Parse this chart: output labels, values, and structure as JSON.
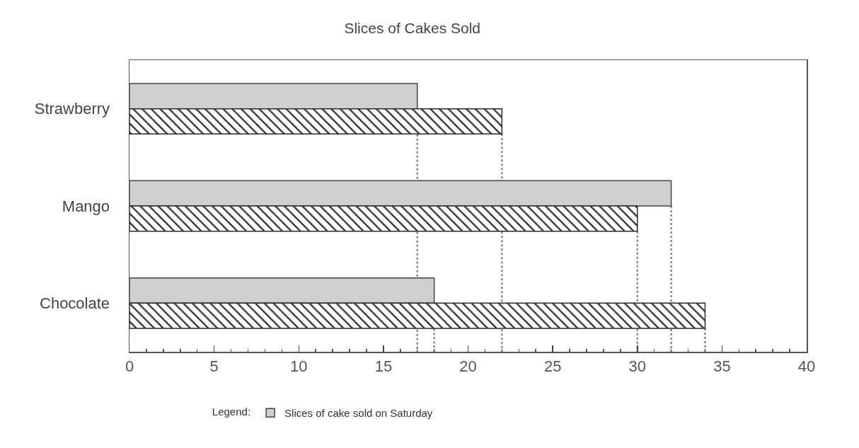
{
  "chart_data": {
    "type": "bar",
    "title": "Slices of Cakes Sold",
    "orientation": "horizontal",
    "categories": [
      "Strawberry",
      "Mango",
      "Chocolate"
    ],
    "series": [
      {
        "name": "Slices of cake sold on Saturday",
        "color": "#cfcfcf",
        "values": [
          17,
          32,
          18
        ]
      },
      {
        "color": "#2b2b2b",
        "values": [
          22,
          30,
          34
        ]
      }
    ],
    "xlim": [
      0,
      40
    ],
    "xticks": [
      0,
      {
        "value": 1,
        "label": null
      },
      {
        "value": 2,
        "label": null
      },
      {
        "value": 3,
        "label": null
      },
      {
        "value": 4,
        "label": null
      },
      5,
      {
        "value": 6,
        "label": null
      },
      {
        "value": 7,
        "label": null
      },
      {
        "value": 8,
        "label": null
      },
      {
        "value": 9,
        "label": null
      },
      10,
      {
        "value": 11,
        "label": null
      },
      {
        "value": 12,
        "label": null
      },
      {
        "value": 13,
        "label": null
      },
      {
        "value": 14,
        "label": null
      },
      15,
      {
        "value": 16,
        "label": null
      },
      {
        "value": 17,
        "label": null
      },
      {
        "value": 18,
        "label": null
      },
      {
        "value": 19,
        "label": null
      },
      20,
      {
        "value": 21,
        "label": null
      },
      {
        "value": 22,
        "label": null
      },
      {
        "value": 23,
        "label": null
      },
      {
        "value": 24,
        "label": null
      },
      25,
      {
        "value": 26,
        "label": null
      },
      {
        "value": 27,
        "label": null
      },
      {
        "value": 28,
        "label": null
      },
      {
        "value": 29,
        "label": null
      },
      30,
      {
        "value": 31,
        "label": null
      },
      {
        "value": 32,
        "label": null
      },
      {
        "value": 33,
        "label": null
      },
      {
        "value": 34,
        "label": null
      },
      35,
      {
        "value": 36,
        "label": null
      },
      {
        "value": 37,
        "label": null
      },
      {
        "value": 38,
        "label": null
      },
      {
        "value": 39,
        "label": null
      },
      40
    ],
    "ref_lines": [
      {
        "axis": "x",
        "value": 17,
        "line_style": "dotted",
        "color": "#7a7a7a"
      },
      {
        "axis": "x",
        "value": 22,
        "line_style": "dotted",
        "color": "#7a7a7a"
      },
      {
        "axis": "x",
        "value": 32,
        "line_style": "dotted",
        "color": "#7a7a7a"
      },
      {
        "axis": "x",
        "value": 30,
        "line_style": "dotted",
        "color": "#7a7a7a"
      },
      {
        "axis": "x",
        "value": 18,
        "line_style": "dotted",
        "color": "#7a7a7a"
      },
      {
        "axis": "x",
        "value": 34,
        "line_style": "dotted",
        "color": "#7a7a7a"
      }
    ],
    "legend": "bottom",
    "legend_title": "Legend:"
  }
}
